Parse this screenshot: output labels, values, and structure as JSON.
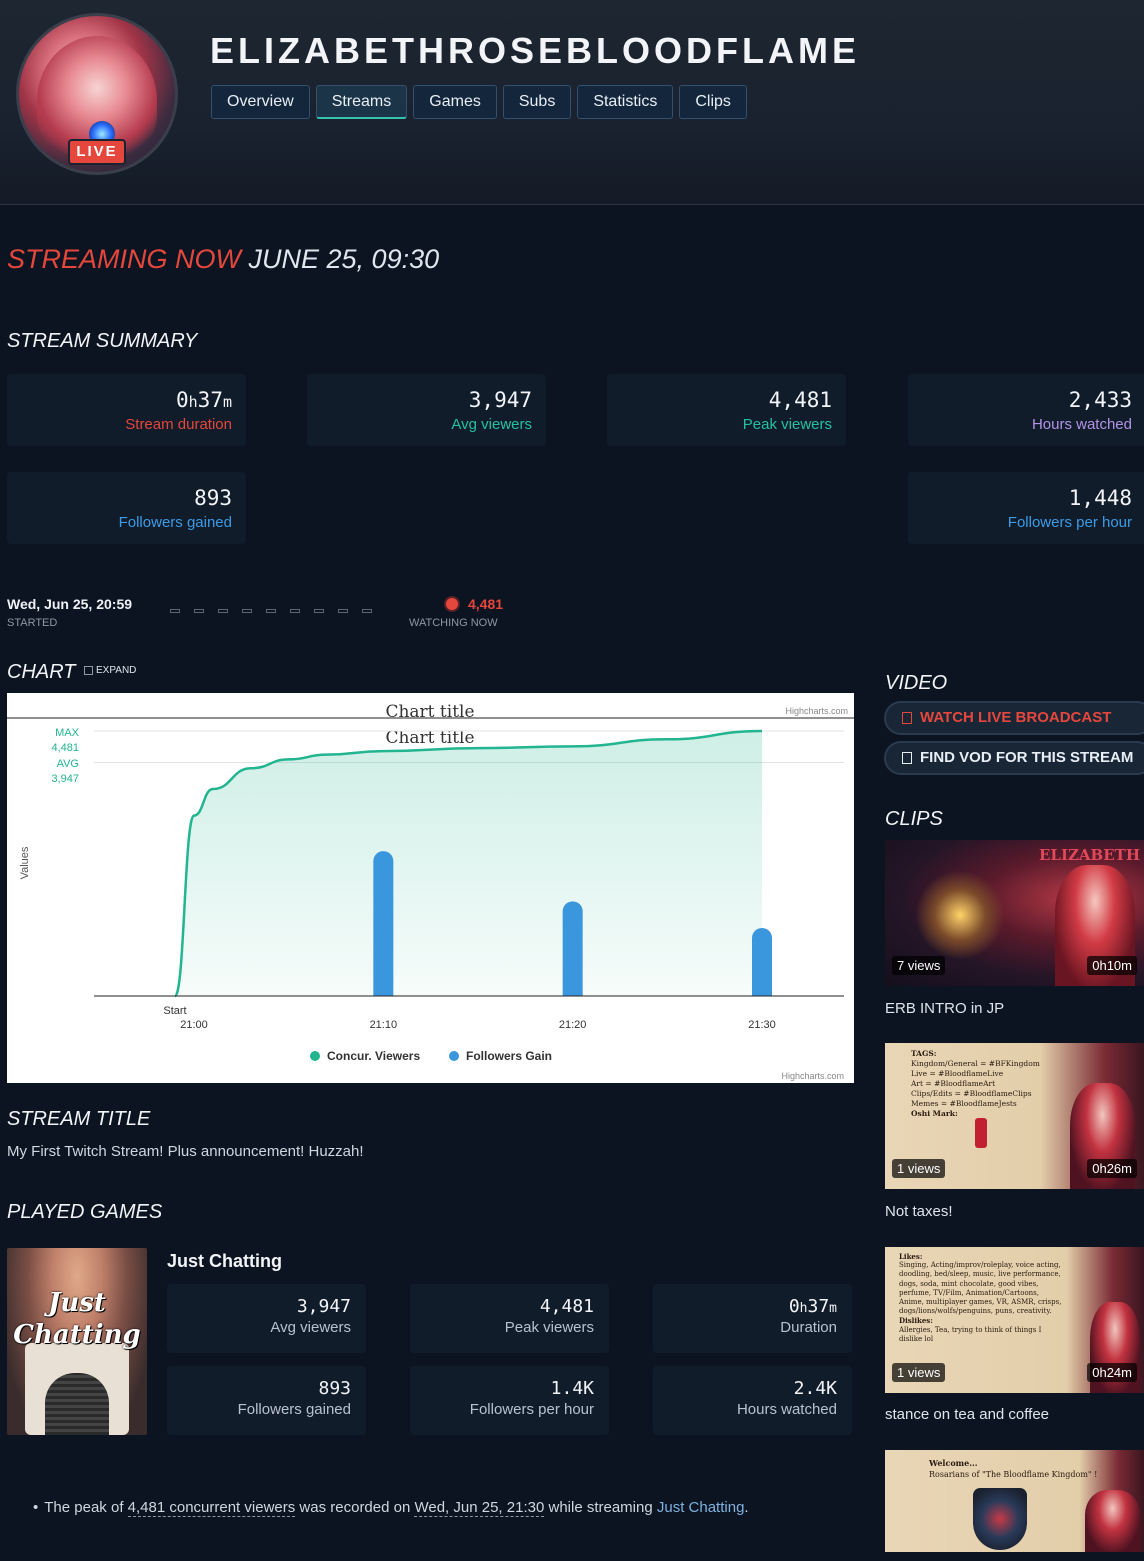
{
  "channel": {
    "name": "ELIZABETHROSEBLOODFLAME",
    "live_badge": "LIVE"
  },
  "tabs": [
    "Overview",
    "Streams",
    "Games",
    "Subs",
    "Statistics",
    "Clips"
  ],
  "active_tab": "Streams",
  "streaming_now": {
    "label": "STREAMING NOW",
    "date": "JUNE 25, 09:30"
  },
  "summary": {
    "title": "STREAM SUMMARY",
    "duration": {
      "h": "0",
      "m": "37",
      "label": "Stream duration"
    },
    "avg_viewers": {
      "value": "3,947",
      "label": "Avg viewers"
    },
    "peak_viewers": {
      "value": "4,481",
      "label": "Peak viewers"
    },
    "hours_watched": {
      "value": "2,433",
      "label": "Hours watched"
    },
    "followers_gained": {
      "value": "893",
      "label": "Followers gained"
    },
    "followers_per_hour": {
      "value": "1,448",
      "label": "Followers per hour"
    }
  },
  "timeline": {
    "started_value": "Wed, Jun 25, 20:59",
    "started_label": "STARTED",
    "watching_value": "4,481",
    "watching_label": "WATCHING NOW"
  },
  "chart_section": {
    "title": "CHART",
    "expand": "EXPAND",
    "credit": "Highcharts.com"
  },
  "chart_data": {
    "type": "line",
    "title": "Chart title",
    "ylabel": "Values",
    "x_ticks": [
      "21:00",
      "21:10",
      "21:20",
      "21:30"
    ],
    "x_start_label": "Start",
    "annotations": {
      "max_label": "MAX",
      "max_value": "4,481",
      "avg_label": "AVG",
      "avg_value": "3,947"
    },
    "ylim": [
      0,
      4700
    ],
    "series": [
      {
        "name": "Concur. Viewers",
        "type": "area",
        "color": "#22b58f",
        "x": [
          "20:59",
          "21:00",
          "21:01",
          "21:03",
          "21:05",
          "21:07",
          "21:10",
          "21:15",
          "21:20",
          "21:25",
          "21:30"
        ],
        "values": [
          0,
          3050,
          3500,
          3850,
          4000,
          4080,
          4140,
          4190,
          4220,
          4340,
          4481
        ]
      },
      {
        "name": "Followers Gain",
        "type": "column",
        "color": "#3a96dd",
        "x": [
          "21:10",
          "21:20",
          "21:30"
        ],
        "values": [
          2450,
          1600,
          1150
        ]
      }
    ]
  },
  "video": {
    "title": "VIDEO",
    "watch_live": "WATCH LIVE BROADCAST",
    "find_vod": "FIND VOD FOR THIS STREAM"
  },
  "clips": {
    "title": "CLIPS",
    "items": [
      {
        "views": "7 views",
        "duration_h": "0",
        "duration_m": "10",
        "title": "ERB INTRO in JP"
      },
      {
        "views": "1 views",
        "duration_h": "0",
        "duration_m": "26",
        "title": "Not taxes!"
      },
      {
        "views": "1 views",
        "duration_h": "0",
        "duration_m": "24",
        "title": "stance on tea and coffee"
      },
      {
        "views": "",
        "duration_h": "",
        "duration_m": "",
        "title": ""
      }
    ]
  },
  "clip_text": {
    "c1_rose": "ELIZABETH",
    "c2_tags": [
      "TAGS:",
      "Kingdom/General = #BFKingdom",
      "Live = #BloodflameLive",
      "Art = #BloodflameArt",
      "Clips/Edits = #BloodflameClips",
      "Memes = #BloodflameJests",
      "Oshi Mark:"
    ],
    "c3_likes": [
      "Likes:",
      "Singing, Acting/improv/roleplay, voice acting,",
      "doodling, bed/sleep, music, live performance,",
      "dogs, soda, mint chocolate, good vibes,",
      "perfume, TV/Film, Animation/Cartoons,",
      "Anime, multiplayer games, VR, ASMR, crisps,",
      "dogs/lions/wolfs/penguins, puns, creativity.",
      "Dislikes:",
      "Allergies, Tea, trying to think of things I",
      "dislike lol"
    ],
    "c4_welcome": [
      "Welcome...",
      "Rosarians of \"The Bloodflame Kingdom\" !"
    ]
  },
  "stream_title": {
    "title": "STREAM TITLE",
    "text": "My First Twitch Stream! Plus announcement! Huzzah!"
  },
  "played_games": {
    "title": "PLAYED GAMES",
    "game": {
      "name": "Just Chatting",
      "art_text_1": "Just",
      "art_text_2": "Chatting"
    },
    "stats": {
      "avg_viewers": {
        "value": "3,947",
        "label": "Avg viewers"
      },
      "peak_viewers": {
        "value": "4,481",
        "label": "Peak viewers"
      },
      "duration": {
        "h": "0",
        "m": "37",
        "label": "Duration"
      },
      "followers_gained": {
        "value": "893",
        "label": "Followers gained"
      },
      "followers_per_hour": {
        "value": "1.4K",
        "label": "Followers per hour"
      },
      "hours_watched": {
        "value": "2.4K",
        "label": "Hours watched"
      }
    }
  },
  "footer_note": {
    "p1": "The peak of ",
    "viewers": "4,481 concurrent viewers",
    "p2": " was recorded on ",
    "date": "Wed, Jun 25, 21:30",
    "p3": " while streaming ",
    "game": "Just Chatting",
    "p4": "."
  }
}
